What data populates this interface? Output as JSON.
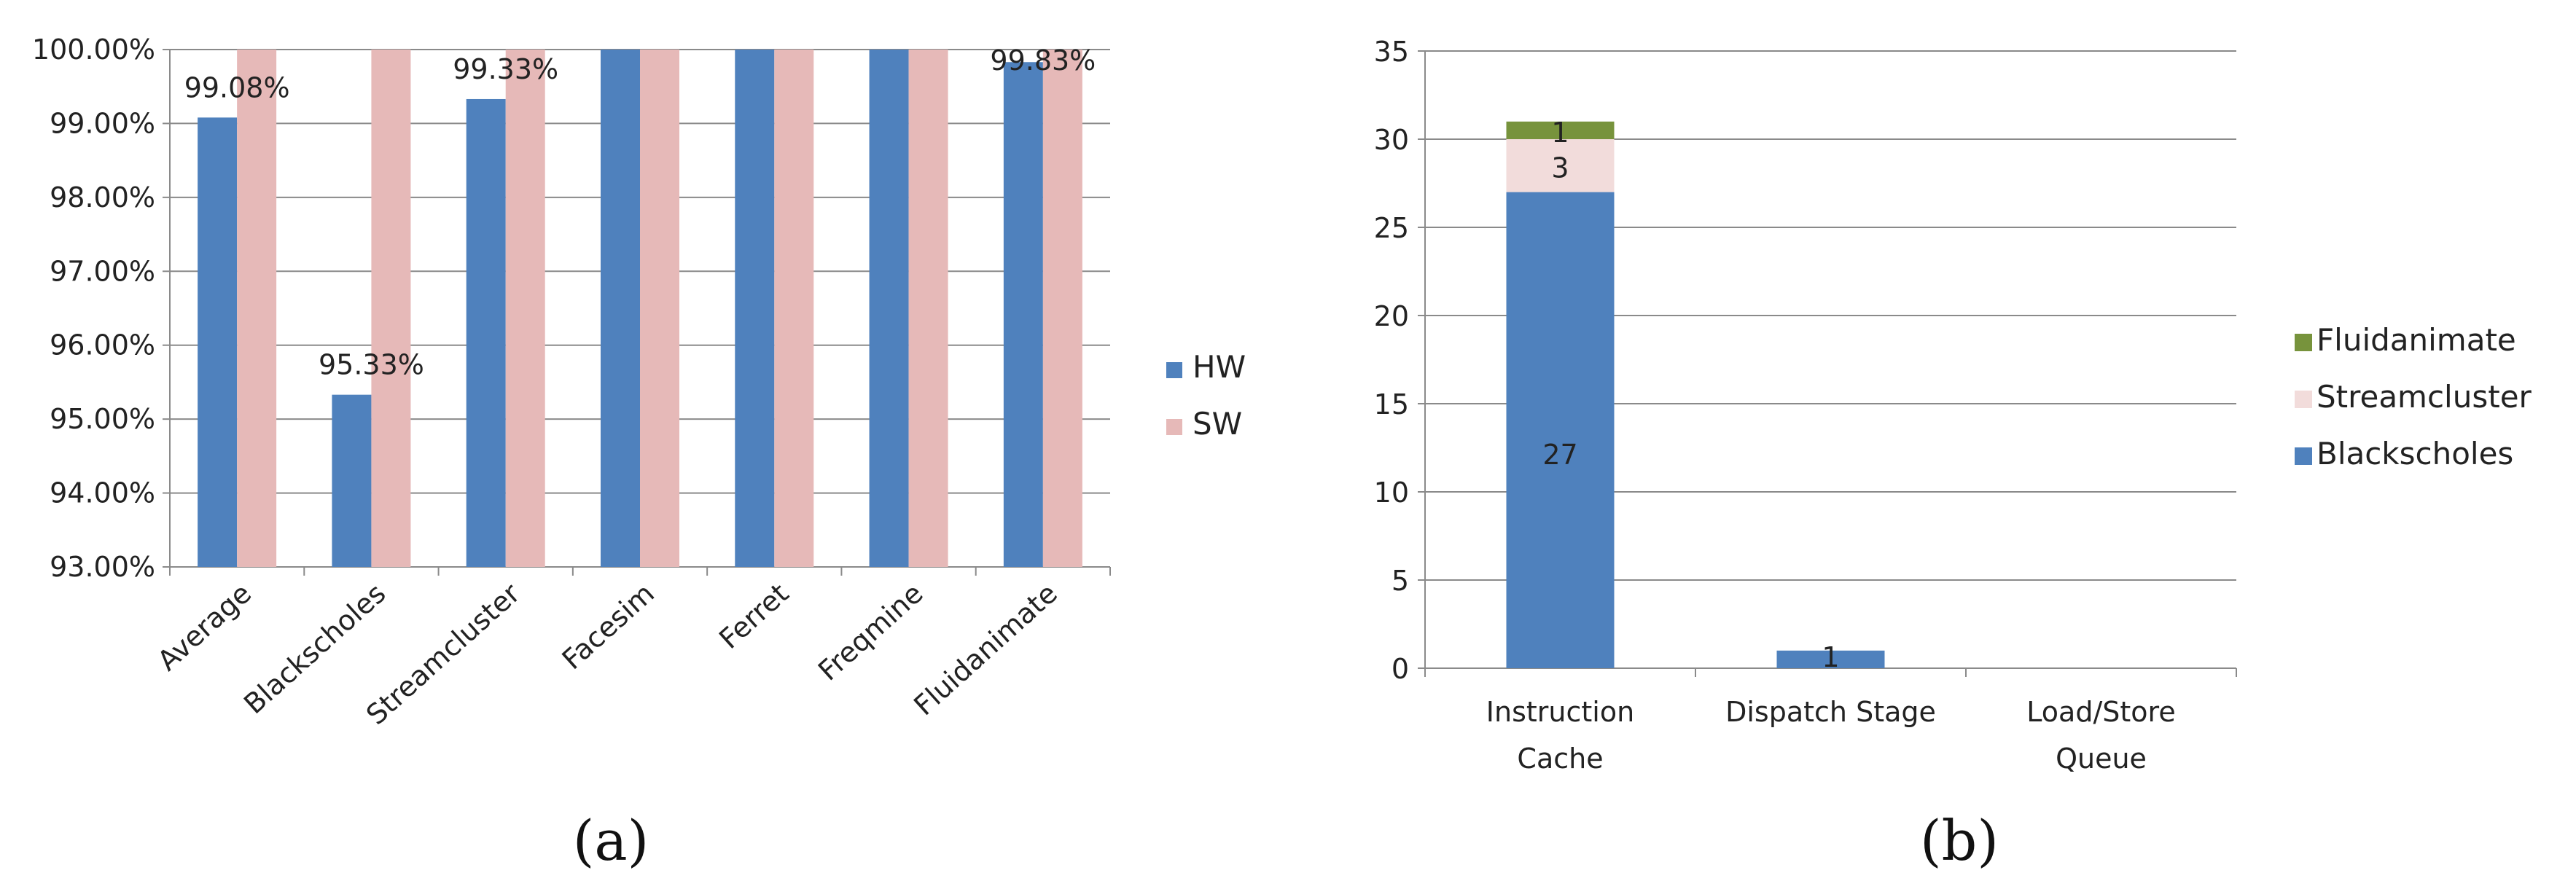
{
  "chart_data": [
    {
      "type": "bar",
      "caption": "(a)",
      "categories": [
        "Average",
        "Blackscholes",
        "Streamcluster",
        "Facesim",
        "Ferret",
        "Freqmine",
        "Fluidanimate"
      ],
      "series": [
        {
          "name": "HW",
          "color": "#4f81bd",
          "values": [
            99.08,
            95.33,
            99.33,
            100.0,
            100.0,
            100.0,
            99.83
          ]
        },
        {
          "name": "SW",
          "color": "#e6b9b8",
          "values": [
            100.0,
            100.0,
            100.0,
            100.0,
            100.0,
            100.0,
            100.0
          ]
        }
      ],
      "data_labels": [
        {
          "category_index": 0,
          "text": "99.08%"
        },
        {
          "category_index": 1,
          "text": "95.33%"
        },
        {
          "category_index": 2,
          "text": "99.33%"
        },
        {
          "category_index": 6,
          "text": "99.83%"
        }
      ],
      "y_ticks": [
        "93.00%",
        "94.00%",
        "95.00%",
        "96.00%",
        "97.00%",
        "98.00%",
        "99.00%",
        "100.00%"
      ],
      "ylim": [
        93,
        100
      ],
      "grid": true,
      "legend": "right"
    },
    {
      "type": "bar",
      "stacked": true,
      "caption": "(b)",
      "categories": [
        "Instruction Cache",
        "Dispatch Stage",
        "Load/Store Queue"
      ],
      "category_lines": [
        [
          "Instruction",
          "Cache"
        ],
        [
          "Dispatch Stage"
        ],
        [
          "Load/Store",
          "Queue"
        ]
      ],
      "series": [
        {
          "name": "Blackscholes",
          "color": "#4f81bd",
          "values": [
            27,
            1,
            0
          ],
          "labels": [
            "27",
            "1",
            ""
          ]
        },
        {
          "name": "Streamcluster",
          "color": "#f2dcdb",
          "values": [
            3,
            0,
            0
          ],
          "labels": [
            "3",
            "",
            ""
          ]
        },
        {
          "name": "Fluidanimate",
          "color": "#77933c",
          "values": [
            1,
            0,
            0
          ],
          "labels": [
            "1",
            "",
            ""
          ]
        }
      ],
      "legend_order": [
        "Fluidanimate",
        "Streamcluster",
        "Blackscholes"
      ],
      "y_ticks": [
        "0",
        "5",
        "10",
        "15",
        "20",
        "25",
        "30",
        "35"
      ],
      "ylim": [
        0,
        35
      ],
      "grid": true,
      "legend": "right"
    }
  ]
}
